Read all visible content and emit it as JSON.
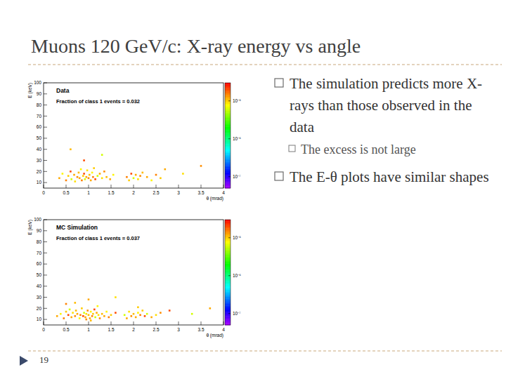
{
  "slide": {
    "title": "Muons 120 GeV/c: X-ray energy vs angle",
    "bullets": [
      {
        "text": "The simulation predicts more X-rays than those observed in the data",
        "sub": [
          "The excess is not large"
        ]
      },
      {
        "text": "The E-θ plots have similar shapes",
        "sub": []
      }
    ],
    "page": 19
  },
  "chart_data": [
    {
      "type": "scatter",
      "title": "Data",
      "annotation": "Fraction of class 1 events = 0.032",
      "x_label": "θ (mrad)",
      "y_label": "E (keV)",
      "xlim": [
        0,
        4
      ],
      "ylim": [
        5,
        100
      ],
      "xticks": [
        0,
        0.5,
        1,
        1.5,
        2,
        2.5,
        3,
        3.5,
        4
      ],
      "yticks": [
        10,
        20,
        30,
        40,
        50,
        60,
        70,
        80,
        90,
        100
      ],
      "x": [
        0.35,
        0.42,
        0.5,
        0.55,
        0.6,
        0.62,
        0.68,
        0.7,
        0.75,
        0.78,
        0.8,
        0.83,
        0.85,
        0.88,
        0.9,
        0.92,
        0.95,
        0.97,
        1.0,
        1.02,
        1.05,
        1.08,
        1.1,
        1.12,
        1.15,
        1.2,
        1.25,
        1.3,
        1.35,
        1.4,
        1.48,
        1.55,
        1.85,
        1.9,
        1.95,
        2.0,
        2.05,
        2.1,
        2.15,
        2.2,
        2.3,
        2.4,
        2.5,
        2.6,
        0.9,
        1.3,
        2.7,
        3.1,
        3.5,
        0.6
      ],
      "values": [
        14,
        18,
        12,
        16,
        20,
        13,
        17,
        11,
        15,
        19,
        14,
        22,
        12,
        16,
        18,
        13,
        15,
        21,
        14,
        17,
        12,
        19,
        15,
        23,
        13,
        16,
        18,
        14,
        20,
        15,
        13,
        17,
        15,
        12,
        18,
        14,
        17,
        13,
        16,
        19,
        15,
        12,
        17,
        14,
        30,
        35,
        22,
        18,
        25,
        40
      ],
      "z": [
        1.2e-05,
        8e-06,
        1.5e-05,
        1e-05,
        2e-05,
        6e-06,
        1.2e-05,
        9e-06,
        1.4e-05,
        1.1e-05,
        1.2e-05,
        8e-06,
        1.5e-05,
        1e-05,
        2e-05,
        6e-06,
        1.2e-05,
        9e-06,
        1.4e-05,
        1.1e-05,
        1.2e-05,
        8e-06,
        1.5e-05,
        1e-05,
        2e-05,
        6e-06,
        1.2e-05,
        9e-06,
        1.4e-05,
        1.1e-05,
        1.2e-05,
        8e-06,
        1.5e-05,
        1e-05,
        2e-05,
        6e-06,
        1.2e-05,
        9e-06,
        1.4e-05,
        1.1e-05,
        1.2e-05,
        8e-06,
        1.5e-05,
        1e-05,
        2e-05,
        6e-06,
        1.2e-05,
        9e-06,
        1.4e-05,
        1.1e-05
      ],
      "zlim": [
        5e-08,
        3e-05
      ],
      "zticks": [
        {
          "value": 1e-07,
          "label": "10⁻⁷"
        },
        {
          "value": 1e-06,
          "label": "10⁻⁶"
        },
        {
          "value": 1e-05,
          "label": "10⁻⁵"
        }
      ]
    },
    {
      "type": "scatter",
      "title": "MC Simulation",
      "annotation": "Fraction of class 1 events = 0.037",
      "x_label": "θ (mrad)",
      "y_label": "E (keV)",
      "xlim": [
        0,
        4
      ],
      "ylim": [
        5,
        100
      ],
      "xticks": [
        0,
        0.5,
        1,
        1.5,
        2,
        2.5,
        3,
        3.5,
        4
      ],
      "yticks": [
        10,
        20,
        30,
        40,
        50,
        60,
        70,
        80,
        90,
        100
      ],
      "x": [
        0.3,
        0.38,
        0.45,
        0.5,
        0.55,
        0.58,
        0.62,
        0.65,
        0.7,
        0.72,
        0.75,
        0.8,
        0.82,
        0.85,
        0.88,
        0.9,
        0.93,
        0.95,
        0.98,
        1.0,
        1.03,
        1.05,
        1.08,
        1.1,
        1.13,
        1.15,
        1.18,
        1.22,
        1.25,
        1.3,
        1.35,
        1.4,
        1.45,
        1.5,
        1.6,
        1.8,
        1.85,
        1.9,
        1.95,
        2.0,
        2.05,
        2.1,
        2.15,
        2.2,
        2.25,
        2.3,
        2.4,
        2.5,
        2.6,
        0.7,
        1.0,
        1.2,
        0.5,
        2.1,
        2.8,
        3.3,
        3.7,
        1.6,
        0.95,
        1.05
      ],
      "values": [
        13,
        15,
        11,
        17,
        14,
        19,
        12,
        16,
        13,
        18,
        15,
        11,
        14,
        20,
        13,
        16,
        12,
        15,
        18,
        14,
        11,
        17,
        13,
        15,
        19,
        12,
        16,
        14,
        11,
        15,
        13,
        17,
        12,
        14,
        16,
        14,
        11,
        17,
        13,
        15,
        12,
        16,
        14,
        18,
        13,
        15,
        12,
        14,
        16,
        25,
        28,
        22,
        24,
        21,
        18,
        15,
        20,
        30,
        10,
        9
      ],
      "z": [
        1.2e-05,
        8e-06,
        1.5e-05,
        1e-05,
        2e-05,
        6e-06,
        1.2e-05,
        9e-06,
        1.4e-05,
        1.1e-05,
        1.2e-05,
        8e-06,
        1.5e-05,
        1e-05,
        2e-05,
        6e-06,
        1.2e-05,
        9e-06,
        1.4e-05,
        1.1e-05,
        1.2e-05,
        8e-06,
        1.5e-05,
        1e-05,
        2e-05,
        6e-06,
        1.2e-05,
        9e-06,
        1.4e-05,
        1.1e-05,
        1.2e-05,
        8e-06,
        1.5e-05,
        1e-05,
        2e-05,
        6e-06,
        1.2e-05,
        9e-06,
        1.4e-05,
        1.1e-05,
        1.2e-05,
        8e-06,
        1.5e-05,
        1e-05,
        2e-05,
        6e-06,
        1.2e-05,
        9e-06,
        1.4e-05,
        1.1e-05,
        1.2e-05,
        8e-06,
        1.5e-05,
        1e-05,
        2e-05,
        6e-06,
        1.2e-05,
        9e-06,
        1.4e-05,
        1.1e-05
      ],
      "zlim": [
        5e-08,
        3e-05
      ],
      "zticks": [
        {
          "value": 1e-07,
          "label": "10⁻⁷"
        },
        {
          "value": 1e-06,
          "label": "10⁻⁶"
        },
        {
          "value": 1e-05,
          "label": "10⁻⁵"
        }
      ]
    }
  ]
}
